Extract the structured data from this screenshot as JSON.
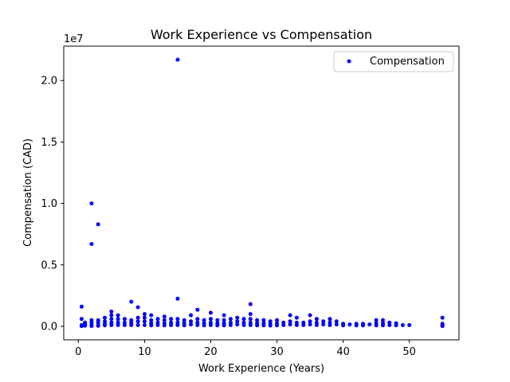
{
  "chart_data": {
    "type": "scatter",
    "title": "Work Experience vs Compensation",
    "xlabel": "Work Experience (Years)",
    "ylabel": "Compensation (CAD)",
    "y_offset_text": "1e7",
    "xlim": [
      -2.2,
      57.5
    ],
    "ylim": [
      -1100000,
      22800000
    ],
    "xticks": [
      0,
      10,
      20,
      30,
      40,
      50
    ],
    "xtick_labels": [
      "0",
      "10",
      "20",
      "30",
      "40",
      "50"
    ],
    "yticks": [
      0,
      5000000,
      10000000,
      15000000,
      20000000
    ],
    "ytick_labels": [
      "0.0",
      "0.5",
      "1.0",
      "1.5",
      "2.0"
    ],
    "grid": false,
    "legend_position": "top-right",
    "series": [
      {
        "name": "Compensation",
        "color": "#0000ff",
        "marker": "circle",
        "points": [
          [
            0.5,
            1600000
          ],
          [
            0.5,
            600000
          ],
          [
            0.5,
            100000
          ],
          [
            0.5,
            20000
          ],
          [
            1,
            300000
          ],
          [
            1,
            150000
          ],
          [
            1,
            50000
          ],
          [
            2,
            10000000
          ],
          [
            2,
            6700000
          ],
          [
            2,
            500000
          ],
          [
            2,
            300000
          ],
          [
            2,
            100000
          ],
          [
            2,
            30000
          ],
          [
            3,
            8300000
          ],
          [
            3,
            500000
          ],
          [
            3,
            300000
          ],
          [
            3,
            100000
          ],
          [
            3,
            40000
          ],
          [
            4,
            700000
          ],
          [
            4,
            400000
          ],
          [
            4,
            200000
          ],
          [
            4,
            80000
          ],
          [
            5,
            1200000
          ],
          [
            5,
            900000
          ],
          [
            5,
            600000
          ],
          [
            5,
            300000
          ],
          [
            5,
            100000
          ],
          [
            6,
            900000
          ],
          [
            6,
            600000
          ],
          [
            6,
            300000
          ],
          [
            6,
            100000
          ],
          [
            7,
            600000
          ],
          [
            7,
            300000
          ],
          [
            7,
            100000
          ],
          [
            8,
            2000000
          ],
          [
            8,
            500000
          ],
          [
            8,
            300000
          ],
          [
            8,
            100000
          ],
          [
            9,
            1550000
          ],
          [
            9,
            700000
          ],
          [
            9,
            400000
          ],
          [
            9,
            100000
          ],
          [
            10,
            1000000
          ],
          [
            10,
            700000
          ],
          [
            10,
            400000
          ],
          [
            10,
            100000
          ],
          [
            11,
            900000
          ],
          [
            11,
            500000
          ],
          [
            11,
            250000
          ],
          [
            11,
            80000
          ],
          [
            12,
            600000
          ],
          [
            12,
            300000
          ],
          [
            12,
            100000
          ],
          [
            13,
            800000
          ],
          [
            13,
            500000
          ],
          [
            13,
            250000
          ],
          [
            13,
            80000
          ],
          [
            14,
            600000
          ],
          [
            14,
            300000
          ],
          [
            14,
            100000
          ],
          [
            15,
            21700000
          ],
          [
            15,
            2250000
          ],
          [
            15,
            600000
          ],
          [
            15,
            300000
          ],
          [
            15,
            100000
          ],
          [
            16,
            500000
          ],
          [
            16,
            250000
          ],
          [
            16,
            80000
          ],
          [
            17,
            900000
          ],
          [
            17,
            400000
          ],
          [
            17,
            150000
          ],
          [
            18,
            1350000
          ],
          [
            18,
            600000
          ],
          [
            18,
            300000
          ],
          [
            18,
            100000
          ],
          [
            19,
            500000
          ],
          [
            19,
            250000
          ],
          [
            19,
            80000
          ],
          [
            20,
            1100000
          ],
          [
            20,
            600000
          ],
          [
            20,
            300000
          ],
          [
            20,
            100000
          ],
          [
            21,
            500000
          ],
          [
            21,
            250000
          ],
          [
            21,
            80000
          ],
          [
            22,
            900000
          ],
          [
            22,
            500000
          ],
          [
            22,
            250000
          ],
          [
            22,
            80000
          ],
          [
            23,
            600000
          ],
          [
            23,
            300000
          ],
          [
            23,
            100000
          ],
          [
            24,
            700000
          ],
          [
            24,
            400000
          ],
          [
            24,
            150000
          ],
          [
            25,
            600000
          ],
          [
            25,
            300000
          ],
          [
            25,
            100000
          ],
          [
            26,
            1800000
          ],
          [
            26,
            1000000
          ],
          [
            26,
            600000
          ],
          [
            26,
            300000
          ],
          [
            26,
            100000
          ],
          [
            27,
            500000
          ],
          [
            27,
            250000
          ],
          [
            27,
            80000
          ],
          [
            28,
            500000
          ],
          [
            28,
            250000
          ],
          [
            28,
            80000
          ],
          [
            29,
            400000
          ],
          [
            29,
            200000
          ],
          [
            29,
            60000
          ],
          [
            30,
            500000
          ],
          [
            30,
            250000
          ],
          [
            30,
            80000
          ],
          [
            31,
            300000
          ],
          [
            31,
            100000
          ],
          [
            32,
            900000
          ],
          [
            32,
            400000
          ],
          [
            32,
            150000
          ],
          [
            33,
            700000
          ],
          [
            33,
            300000
          ],
          [
            33,
            100000
          ],
          [
            34,
            300000
          ],
          [
            34,
            100000
          ],
          [
            35,
            900000
          ],
          [
            35,
            400000
          ],
          [
            35,
            150000
          ],
          [
            36,
            600000
          ],
          [
            36,
            300000
          ],
          [
            36,
            100000
          ],
          [
            37,
            400000
          ],
          [
            37,
            150000
          ],
          [
            38,
            600000
          ],
          [
            38,
            300000
          ],
          [
            38,
            100000
          ],
          [
            39,
            400000
          ],
          [
            39,
            150000
          ],
          [
            40,
            200000
          ],
          [
            40,
            80000
          ],
          [
            41,
            150000
          ],
          [
            42,
            200000
          ],
          [
            42,
            80000
          ],
          [
            43,
            200000
          ],
          [
            43,
            80000
          ],
          [
            44,
            150000
          ],
          [
            45,
            500000
          ],
          [
            45,
            250000
          ],
          [
            45,
            80000
          ],
          [
            46,
            500000
          ],
          [
            46,
            250000
          ],
          [
            46,
            80000
          ],
          [
            47,
            300000
          ],
          [
            47,
            100000
          ],
          [
            48,
            250000
          ],
          [
            48,
            80000
          ],
          [
            49,
            100000
          ],
          [
            50,
            100000
          ],
          [
            55,
            700000
          ],
          [
            55,
            200000
          ],
          [
            55,
            100000
          ],
          [
            55,
            20000
          ]
        ]
      }
    ]
  }
}
